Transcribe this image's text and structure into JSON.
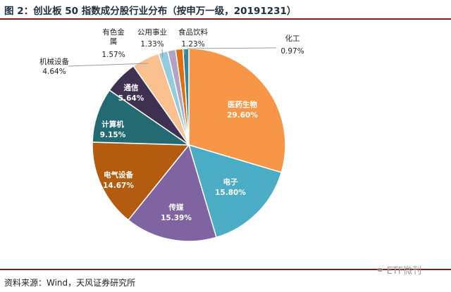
{
  "title": "图 2：创业板 50 指数成分股行业分布（按申万一级，20191231）",
  "source": "资料来源：Wind，天风证券研究所",
  "watermark": "ETF微刊",
  "chart_data": {
    "type": "pie",
    "title": "图 2：创业板 50 指数成分股行业分布（按申万一级，20191231）",
    "slices": [
      {
        "label": "医药生物",
        "value": 29.6,
        "value_label": "29.60%",
        "color": "#F79646"
      },
      {
        "label": "电子",
        "value": 15.8,
        "value_label": "15.80%",
        "color": "#4BACC6"
      },
      {
        "label": "传媒",
        "value": 15.39,
        "value_label": "15.39%",
        "color": "#8064A2"
      },
      {
        "label": "电气设备",
        "value": 14.67,
        "value_label": "14.67%",
        "color": "#B35C0F"
      },
      {
        "label": "计算机",
        "value": 9.15,
        "value_label": "9.15%",
        "color": "#246A73"
      },
      {
        "label": "通信",
        "value": 5.64,
        "value_label": "5.64%",
        "color": "#3F3151"
      },
      {
        "label": "机械设备",
        "value": 4.64,
        "value_label": "4.64%",
        "color": "#FAC090"
      },
      {
        "label": "有色金属",
        "value": 1.57,
        "value_label": "1.57%",
        "color": "#93CDDD"
      },
      {
        "label": "公用事业",
        "value": 1.33,
        "value_label": "1.33%",
        "color": "#B3A2C7"
      },
      {
        "label": "食品饮料",
        "value": 1.23,
        "value_label": "1.23%",
        "color": "#E46C0A"
      },
      {
        "label": "化工",
        "value": 0.97,
        "value_label": "0.97%",
        "color": "#31859C"
      }
    ]
  }
}
